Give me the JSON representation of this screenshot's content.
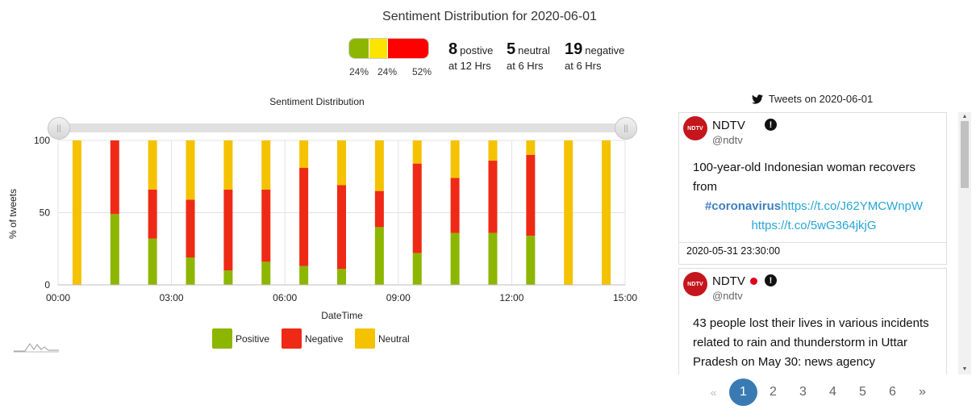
{
  "header": {
    "title": "Sentiment Distribution for 2020-06-01",
    "ratio": [
      {
        "key": "positive",
        "percent": 24,
        "label": "24%",
        "color": "#8db600"
      },
      {
        "key": "neutral",
        "percent": 24,
        "label": "24%",
        "color": "#fde300"
      },
      {
        "key": "negative",
        "percent": 52,
        "label": "52%",
        "color": "#ff0000"
      }
    ],
    "stats": [
      {
        "count": "8",
        "label": "postive",
        "sub": "at 12 Hrs"
      },
      {
        "count": "5",
        "label": "neutral",
        "sub": "at 6 Hrs"
      },
      {
        "count": "19",
        "label": "negative",
        "sub": "at 6 Hrs"
      }
    ]
  },
  "chart_data": {
    "type": "bar",
    "stacked": true,
    "title": "Sentiment Distribution",
    "xlabel": "DateTime",
    "ylabel": "% of tweets",
    "xlim": [
      0,
      15
    ],
    "ylim": [
      0,
      100
    ],
    "yticks": [
      "0",
      "50",
      "100"
    ],
    "xticks": [
      "00:00",
      "03:00",
      "06:00",
      "09:00",
      "12:00",
      "15:00"
    ],
    "xunit": "hours",
    "x": [
      0.5,
      1.5,
      2.5,
      3.5,
      4.5,
      5.5,
      6.5,
      7.5,
      8.5,
      9.5,
      10.5,
      11.5,
      12.5,
      13.5,
      14.5
    ],
    "series": [
      {
        "name": "Positive",
        "color": "#8db600",
        "values": [
          0,
          49,
          32,
          19,
          10,
          16,
          13,
          11,
          40,
          22,
          36,
          36,
          34,
          0,
          0
        ]
      },
      {
        "name": "Negative",
        "color": "#ee2a16",
        "values": [
          0,
          51,
          34,
          40,
          56,
          50,
          68,
          58,
          25,
          62,
          38,
          50,
          56,
          0,
          0
        ]
      },
      {
        "name": "Neutral",
        "color": "#f5c200",
        "values": [
          100,
          0,
          34,
          41,
          34,
          34,
          19,
          31,
          35,
          16,
          26,
          14,
          10,
          100,
          100
        ]
      }
    ],
    "grid": true,
    "legend_position": "bottom",
    "range_slider": true
  },
  "tweets": {
    "header": "Tweets on 2020-06-01",
    "items": [
      {
        "author": "NDTV",
        "handle": "@ndtv",
        "avatar_text": "NDTV",
        "live_dot": false,
        "text": "100-year-old Indonesian woman recovers from",
        "hashtag": "#coronavirus",
        "link1": "https://t.co/J62YMCWnpW",
        "link2": "https://t.co/5wG364jkjG",
        "timestamp": "2020-05-31 23:30:00"
      },
      {
        "author": "NDTV",
        "handle": "@ndtv",
        "avatar_text": "NDTV",
        "live_dot": true,
        "text": "43 people lost their lives in various incidents related to rain and thunderstorm in Uttar Pradesh on May 30: news agency"
      }
    ]
  },
  "pagination": {
    "prev": "«",
    "pages": [
      "1",
      "2",
      "3",
      "4",
      "5",
      "6"
    ],
    "active_page": "1",
    "next": "»"
  },
  "icons": {
    "twitter": "twitter-icon",
    "alert": "exclamation-circle-icon",
    "zoom_thumbnail": "sparkline-icon"
  }
}
